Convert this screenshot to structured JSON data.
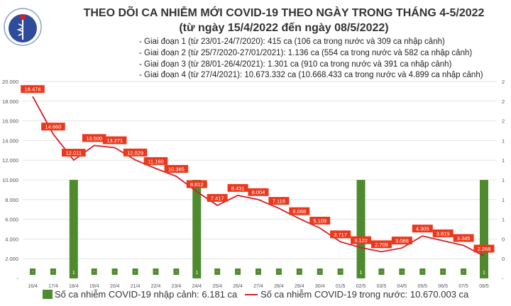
{
  "header": {
    "title": "THEO DÕI CA NHIỄM MỚI COVID-19 THEO NGÀY TRONG THÁNG 4-5/2022",
    "subtitle": "(từ ngày 15/4/2022 đến ngày 08/5/2022)",
    "notes": [
      "- Giai đoạn 1 (từ 23/01-24/7/2020): 415 ca (106 ca trong nước và 309 ca nhập cảnh)",
      "- Giai đoạn 2 (từ 25/7/2020-27/01/2021): 1.136 ca (554 ca trong nước và 582 ca nhập cảnh)",
      "- Giai đoạn 3 (từ 28/01-26/4/2021): 1.301 ca (910 ca trong nước và 391 ca nhập cảnh)",
      "- Giai đoạn 4 (từ 27/4/2021): 10.673.332 ca (10.668.433 ca trong nước và 4.899 ca nhập cảnh)"
    ],
    "logo_text": "BỘ Y TẾ · MINISTRY OF HEALTH"
  },
  "chart_data": {
    "type": "bar+line",
    "categories": [
      "16/4",
      "17/4",
      "18/4",
      "19/4",
      "20/4",
      "21/4",
      "22/4",
      "23/4",
      "24/4",
      "25/4",
      "26/4",
      "27/4",
      "28/4",
      "29/4",
      "30/4",
      "01/5",
      "02/5",
      "03/5",
      "04/5",
      "05/5",
      "06/5",
      "07/5",
      "08/5"
    ],
    "series": [
      {
        "name": "Số ca nhiễm COVID-19 nhập cảnh: 6.181 ca",
        "type": "bar",
        "axis": "right",
        "color": "#4f8a2f",
        "values": [
          0,
          0,
          1,
          0,
          0,
          0,
          0,
          0,
          1,
          0,
          0,
          0,
          0,
          0,
          0,
          0,
          1,
          0,
          0,
          0,
          0,
          0,
          1
        ],
        "labels": [
          "-",
          "-",
          "1",
          "-",
          "-",
          "-",
          "-",
          "-",
          "1",
          "-",
          "-",
          "-",
          "-",
          "-",
          "-",
          "-",
          "1",
          "-",
          "-",
          "-",
          "-",
          "-",
          "1"
        ]
      },
      {
        "name": "Số ca nhiễm COVID-19 trong nước: 10.670.003 ca",
        "type": "line",
        "axis": "left",
        "color": "#d0202a",
        "label_bg": "#e8391d",
        "values": [
          18474,
          14660,
          12011,
          13500,
          13271,
          12029,
          11160,
          10365,
          8812,
          7417,
          8431,
          8004,
          7116,
          6068,
          5109,
          3717,
          3122,
          2709,
          3088,
          4305,
          3819,
          3345,
          2268
        ],
        "labels": [
          "18.474",
          "14.660",
          "12.011",
          "13.500",
          "13.271",
          "12.029",
          "11.160",
          "10.365",
          "8.812",
          "7.417",
          "8.431",
          "8.004",
          "7.116",
          "6.068",
          "5.109",
          "3.717",
          "3.122",
          "2.709",
          "3.088",
          "4.305",
          "3.819",
          "3.345",
          "2.268"
        ]
      }
    ],
    "left_axis": {
      "ylim": [
        0,
        20000
      ],
      "ticks": [
        0,
        2000,
        4000,
        6000,
        8000,
        10000,
        12000,
        14000,
        16000,
        18000,
        20000
      ],
      "tick_labels": [
        "-",
        "2.000",
        "4.000",
        "6.000",
        "8.000",
        "10.000",
        "12.000",
        "14.000",
        "16.000",
        "18.000",
        "20.000"
      ]
    },
    "right_axis": {
      "ylim": [
        0,
        2
      ],
      "ticks": [
        0,
        0.2,
        0.4,
        0.6,
        0.8,
        1,
        1.2,
        1.4,
        1.6,
        1.8,
        2
      ],
      "tick_labels": [
        "-",
        "0",
        "0",
        "1",
        "1",
        "1",
        "1",
        "1",
        "2",
        "2",
        "2"
      ]
    },
    "grid": true,
    "legend_position": "bottom"
  }
}
